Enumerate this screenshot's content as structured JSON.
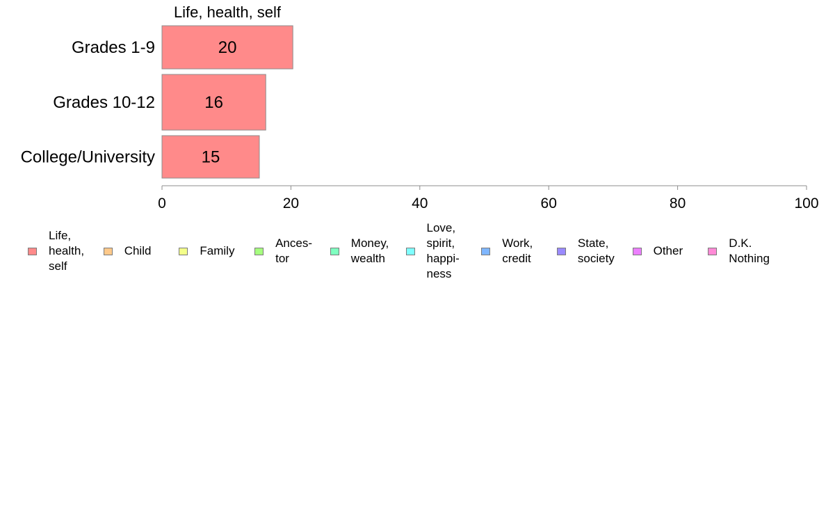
{
  "chart_data": {
    "type": "bar",
    "orientation": "horizontal",
    "stacked": true,
    "facet_title": "Life, health, self",
    "categories": [
      "Grades 1-9",
      "Grades 10-12",
      "College/University"
    ],
    "series": [
      {
        "name": "Life, health, self",
        "values": [
          20.3,
          16.1,
          15.1
        ],
        "labels": [
          "20",
          "16",
          "15"
        ],
        "color": "#ff8a8a"
      }
    ],
    "xlim": [
      0,
      100
    ],
    "xticks": [
      "0",
      "20",
      "40",
      "60",
      "80",
      "100"
    ],
    "grid": false,
    "legend_position": "bottom"
  },
  "legend": {
    "items": [
      {
        "label": "Life,\nhealth,\nself",
        "color": "#ff8a8a"
      },
      {
        "label": "Child",
        "color": "#ffc98a"
      },
      {
        "label": "Family",
        "color": "#f3ff8a"
      },
      {
        "label": "Ances-\ntor",
        "color": "#a6ff7f"
      },
      {
        "label": "Money,\nwealth",
        "color": "#7fffc0"
      },
      {
        "label": "Love,\nspirit,\nhappi-\nness",
        "color": "#7fffff"
      },
      {
        "label": "Work,\ncredit",
        "color": "#7fb6ff"
      },
      {
        "label": "State,\nsociety",
        "color": "#9a8aff"
      },
      {
        "label": "Other",
        "color": "#ec7fff"
      },
      {
        "label": "D.K.\nNothing",
        "color": "#ff8ad6"
      }
    ]
  }
}
